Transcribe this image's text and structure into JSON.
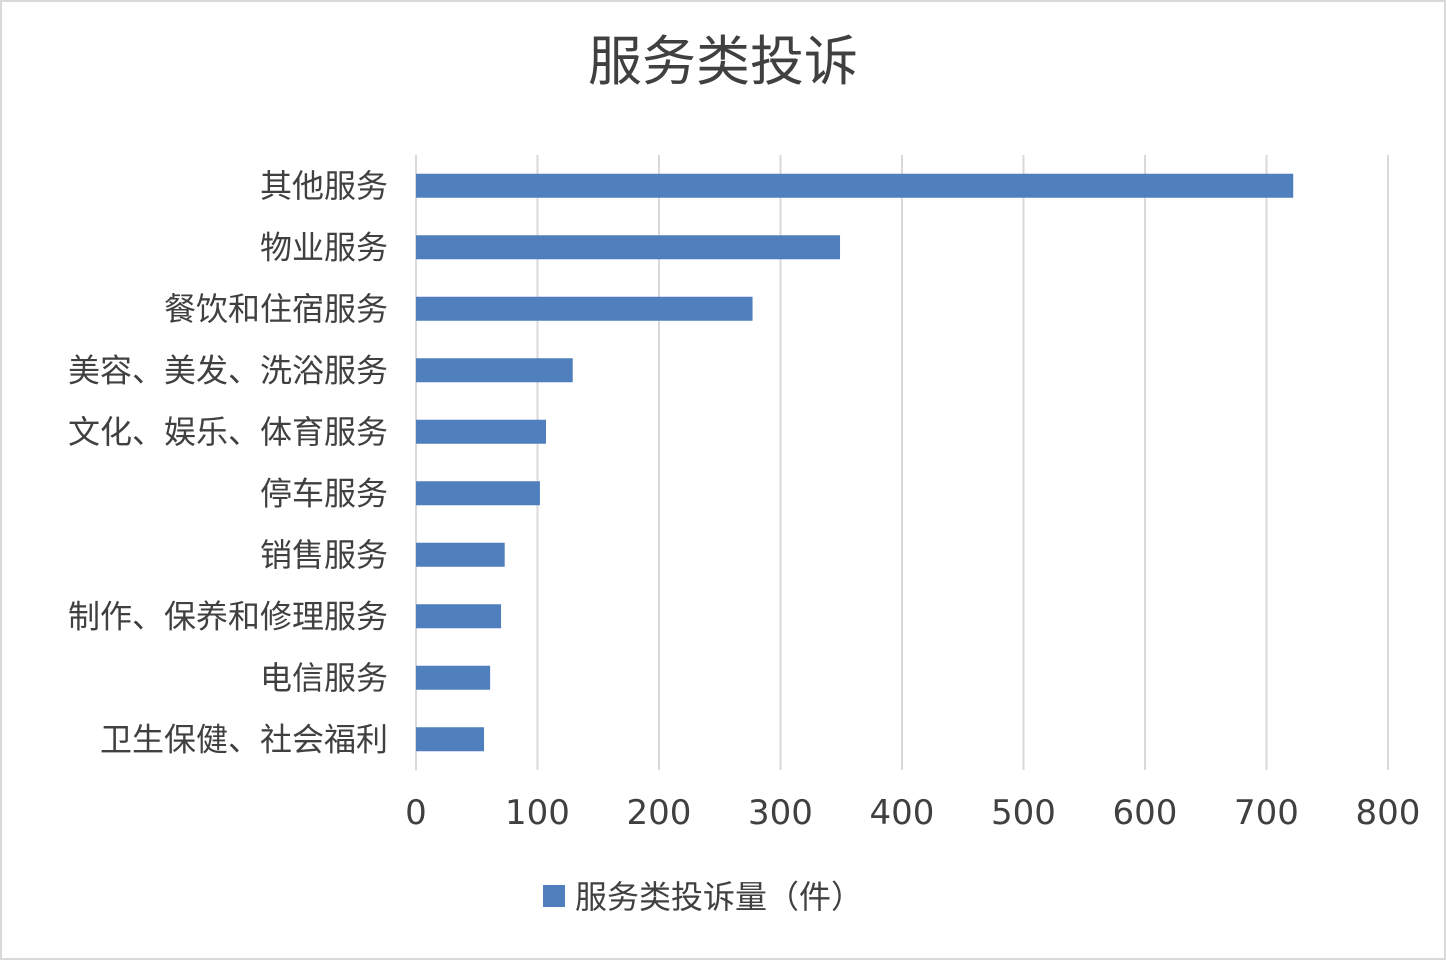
{
  "chart_data": {
    "type": "bar",
    "orientation": "horizontal",
    "title": "服务类投诉",
    "categories": [
      "其他服务",
      "物业服务",
      "餐饮和住宿服务",
      "美容、美发、洗浴服务",
      "文化、娱乐、体育服务",
      "停车服务",
      "销售服务",
      "制作、保养和修理服务",
      "电信服务",
      "卫生保健、社会福利"
    ],
    "series": [
      {
        "name": "服务类投诉量（件）",
        "values": [
          722,
          349,
          277,
          129,
          107,
          102,
          73,
          70,
          61,
          56
        ],
        "color": "#4f7fbd"
      }
    ],
    "xlim": [
      0,
      800
    ],
    "xticks": [
      "0",
      "100",
      "200",
      "300",
      "400",
      "500",
      "600",
      "700",
      "800"
    ],
    "grid": true,
    "legend_position": "bottom"
  }
}
